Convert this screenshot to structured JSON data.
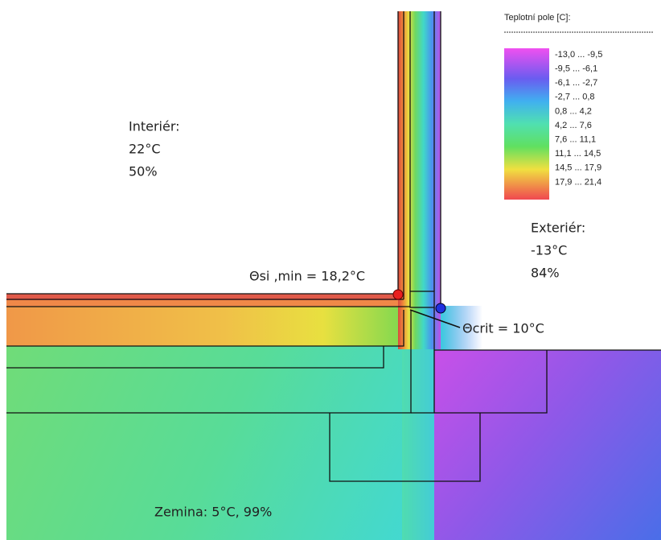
{
  "legend": {
    "title": "Teplotní pole [C]:",
    "items": [
      "-13,0 ... -9,5",
      "-9,5 ... -6,1",
      "-6,1 ... -2,7",
      "-2,7 ... 0,8",
      "0,8 ... 4,2",
      "4,2 ... 7,6",
      "7,6 ... 11,1",
      "11,1 ... 14,5",
      "14,5 ... 17,9",
      "17,9 ... 21,4"
    ]
  },
  "interior": {
    "label": "Interiér:",
    "temperature": "22°C",
    "humidity": "50%"
  },
  "exterior": {
    "label": "Exteriér:",
    "temperature": "-13°C",
    "humidity": "84%"
  },
  "annotations": {
    "theta_si_min": "Θsi ,min = 18,2°C",
    "theta_crit": "Θcrit = 10°C"
  },
  "ground": {
    "label": "Zemina: 5°C, 99%"
  }
}
